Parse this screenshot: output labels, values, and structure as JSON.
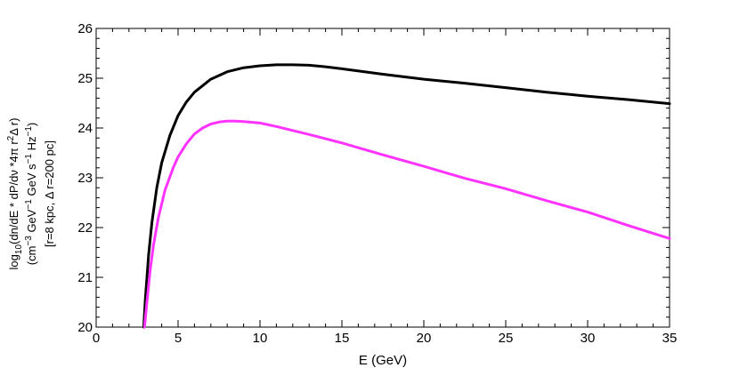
{
  "chart_data": {
    "type": "line",
    "xlabel": "E (GeV)",
    "ylabel_lines": [
      "log10(dn/dE * dP/dv *4π r2Δ r)",
      "(cm−3 GeV−1 GeV s−1 Hz−1)",
      "[r=8 kpc, Δ r=200 pc]"
    ],
    "xlim": [
      0,
      35
    ],
    "ylim": [
      20,
      26
    ],
    "xticks": [
      0,
      5,
      10,
      15,
      20,
      25,
      30,
      35
    ],
    "yticks": [
      20,
      21,
      22,
      23,
      24,
      25,
      26
    ],
    "grid": false,
    "series": [
      {
        "color": "#000000",
        "x": [
          2.9,
          3.0,
          3.2,
          3.4,
          3.7,
          4.0,
          4.5,
          5.0,
          5.5,
          6.0,
          7.0,
          8.0,
          9.0,
          10.0,
          11.0,
          12.0,
          13.0,
          14.0,
          15.0,
          17.5,
          20.0,
          22.5,
          25.0,
          27.5,
          30.0,
          32.5,
          35.0
        ],
        "y": [
          20.0,
          20.55,
          21.45,
          22.1,
          22.8,
          23.3,
          23.85,
          24.25,
          24.52,
          24.72,
          24.98,
          25.13,
          25.21,
          25.25,
          25.27,
          25.27,
          25.26,
          25.23,
          25.19,
          25.08,
          24.98,
          24.9,
          24.81,
          24.72,
          24.64,
          24.57,
          24.49
        ]
      },
      {
        "color": "#ff33ff",
        "x": [
          2.95,
          3.1,
          3.3,
          3.5,
          3.8,
          4.2,
          4.7,
          5.0,
          5.5,
          6.0,
          6.5,
          7.0,
          7.5,
          8.0,
          8.5,
          9.0,
          10.0,
          11.0,
          12.0,
          13.0,
          15.0,
          17.5,
          20.0,
          22.5,
          25.0,
          27.5,
          30.0,
          32.5,
          35.0
        ],
        "y": [
          20.0,
          20.5,
          21.15,
          21.65,
          22.2,
          22.75,
          23.2,
          23.42,
          23.68,
          23.88,
          24.0,
          24.08,
          24.12,
          24.14,
          24.14,
          24.13,
          24.1,
          24.03,
          23.95,
          23.87,
          23.7,
          23.46,
          23.23,
          22.99,
          22.78,
          22.54,
          22.31,
          22.04,
          21.78
        ]
      }
    ]
  }
}
